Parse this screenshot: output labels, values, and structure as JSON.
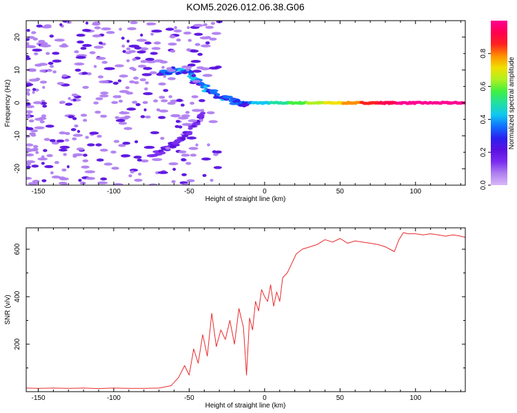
{
  "title": "KOM5.2026.012.06.38.G06",
  "colors": {
    "snr_line": "#e8282a",
    "colormap": [
      "#d8b8f8",
      "#b080f0",
      "#7a2cf0",
      "#5a10e0",
      "#2a20f0",
      "#1070ff",
      "#10c8f0",
      "#20e0a0",
      "#40f040",
      "#b0f020",
      "#f0e000",
      "#ff9000",
      "#ff2020",
      "#ff0050",
      "#ff0090"
    ]
  },
  "chart_data": [
    {
      "type": "heatmap",
      "xlabel": "Height of straight line (km)",
      "ylabel": "Frequency (Hz)",
      "xlim": [
        -158,
        133
      ],
      "ylim": [
        -25,
        25
      ],
      "x_ticks": [
        -150,
        -100,
        -50,
        0,
        50,
        100
      ],
      "y_ticks": [
        -20,
        -10,
        0,
        10,
        20
      ],
      "grid": false,
      "colorbar": {
        "label": "Normalized spectral amplitude",
        "ticks": [
          0.0,
          0.2,
          0.4,
          0.6,
          0.8
        ],
        "range": [
          0,
          1
        ]
      },
      "features": [
        {
          "name": "main carrier",
          "x_range": [
            -15,
            133
          ],
          "frequency": 0,
          "amplitude_range": [
            0.35,
            0.98
          ]
        },
        {
          "name": "upper arc",
          "points": [
            [
              -68,
              9
            ],
            [
              -60,
              10
            ],
            [
              -50,
              9
            ],
            [
              -45,
              7
            ],
            [
              -38,
              4
            ],
            [
              -30,
              2
            ],
            [
              -20,
              0.5
            ],
            [
              -12,
              -0.5
            ]
          ],
          "amplitude": 0.3
        },
        {
          "name": "lower arc",
          "points": [
            [
              -75,
              -16
            ],
            [
              -62,
              -13
            ],
            [
              -55,
              -11
            ],
            [
              -48,
              -7
            ],
            [
              -40,
              -3
            ]
          ],
          "amplitude": 0.15
        },
        {
          "name": "scattered noise",
          "x_range": [
            -158,
            -30
          ],
          "frequency_range": [
            -25,
            25
          ],
          "amplitude": 0.08
        }
      ]
    },
    {
      "type": "line",
      "xlabel": "Height of straight line (km)",
      "ylabel": "SNR (v/v)",
      "xlim": [
        -158,
        133
      ],
      "ylim": [
        0,
        690
      ],
      "x_ticks": [
        -150,
        -100,
        -50,
        0,
        50,
        100
      ],
      "y_ticks": [
        200,
        400,
        600
      ],
      "grid": false,
      "series": [
        {
          "x": [
            -158,
            -150,
            -140,
            -130,
            -120,
            -110,
            -100,
            -90,
            -80,
            -70,
            -62,
            -57,
            -53,
            -50,
            -47,
            -44,
            -41,
            -38,
            -35,
            -32,
            -29,
            -26,
            -23,
            -20,
            -17,
            -14,
            -12,
            -10,
            -8,
            -6,
            -4,
            -2,
            0,
            2,
            4,
            6,
            8,
            10,
            12,
            15,
            18,
            21,
            25,
            30,
            35,
            40,
            45,
            50,
            55,
            60,
            65,
            70,
            75,
            80,
            83,
            86,
            89,
            92,
            95,
            100,
            105,
            110,
            115,
            120,
            125,
            130,
            133
          ],
          "y": [
            15,
            14,
            15,
            14,
            15,
            13,
            15,
            14,
            14,
            15,
            25,
            60,
            110,
            70,
            180,
            120,
            240,
            150,
            330,
            190,
            260,
            220,
            300,
            200,
            350,
            270,
            70,
            310,
            260,
            380,
            340,
            430,
            400,
            380,
            450,
            360,
            420,
            380,
            480,
            500,
            540,
            580,
            600,
            610,
            620,
            640,
            630,
            645,
            625,
            635,
            630,
            625,
            620,
            610,
            600,
            590,
            640,
            670,
            665,
            665,
            660,
            665,
            660,
            655,
            660,
            655,
            650
          ]
        }
      ]
    }
  ]
}
